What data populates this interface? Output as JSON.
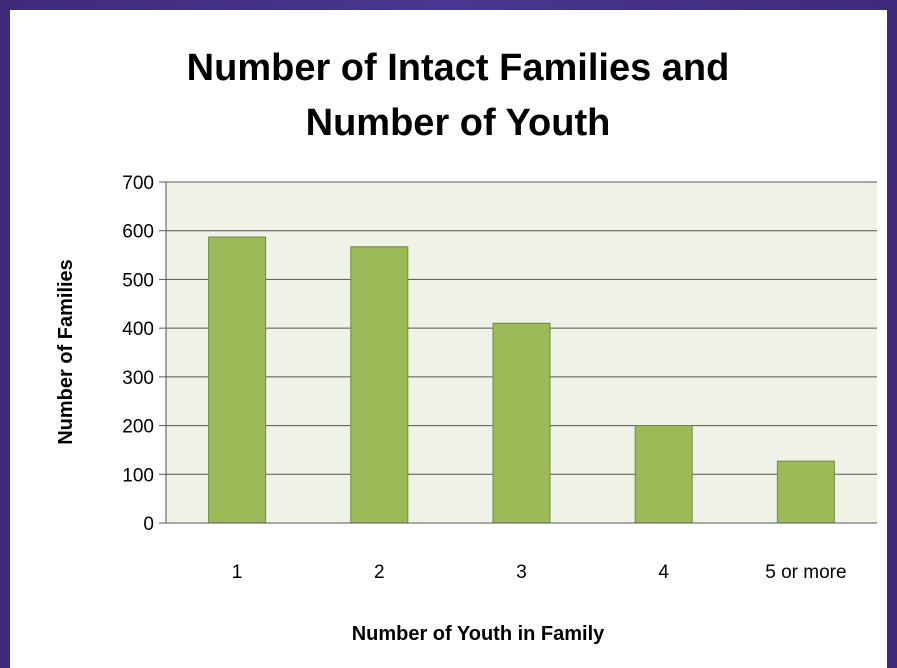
{
  "chart_data": {
    "type": "bar",
    "title": "Number of Intact Families and Number of Youth",
    "title_lines": [
      "Number of Intact Families and",
      "Number of Youth"
    ],
    "xlabel": "Number of Youth in Family",
    "ylabel": "Number of Families",
    "categories": [
      "1",
      "2",
      "3",
      "4",
      "5 or more"
    ],
    "values": [
      587,
      567,
      410,
      200,
      127
    ],
    "ylim": [
      0,
      700
    ],
    "yticks": [
      "0",
      "100",
      "200",
      "300",
      "400",
      "500",
      "600",
      "700"
    ],
    "grid": true,
    "legend": "none",
    "colors": {
      "bar_fill": "#9bbb59",
      "bar_stroke": "#71893f",
      "plot_background": "#eff3e7",
      "gridline": "#555555",
      "frame": "#3f2a7a"
    }
  }
}
